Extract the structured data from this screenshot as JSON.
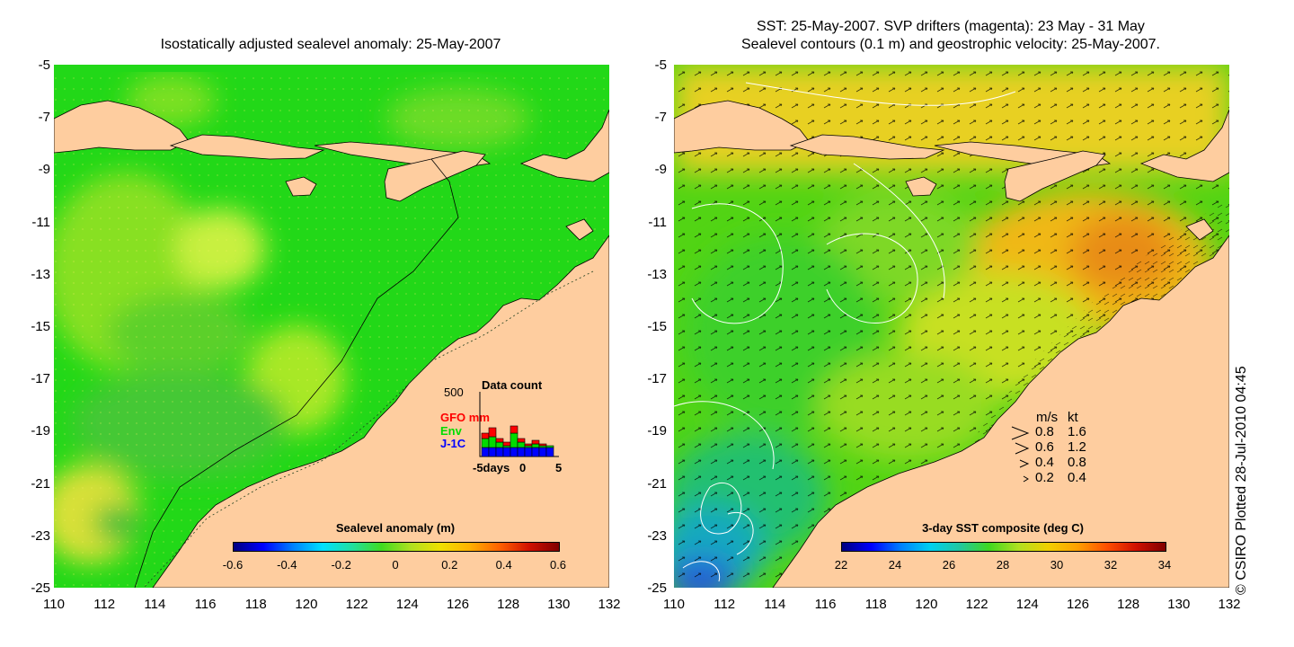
{
  "left_panel": {
    "title": "Isostatically adjusted sealevel anomaly: 25-May-2007",
    "colorbar": {
      "title": "Sealevel anomaly (m)",
      "ticks": [
        "-0.6",
        "-0.4",
        "-0.2",
        "0",
        "0.2",
        "0.4",
        "0.6"
      ]
    },
    "inset": {
      "title": "Data count",
      "ymax_label": "500",
      "series": [
        {
          "name": "GFO mm",
          "color": "#ff0000"
        },
        {
          "name": "Env",
          "color": "#00dd00"
        },
        {
          "name": "J-1C",
          "color": "#0000ff"
        }
      ],
      "x_labels": [
        "-5days",
        "0",
        "5"
      ]
    }
  },
  "right_panel": {
    "title_line1": "SST: 25-May-2007. SVP drifters (magenta): 23 May - 31 May",
    "title_line2": "Sealevel contours (0.1 m) and geostrophic velocity: 25-May-2007.",
    "colorbar": {
      "title": "3-day SST composite (deg C)",
      "ticks": [
        "22",
        "24",
        "26",
        "28",
        "30",
        "32",
        "34"
      ]
    },
    "legend": {
      "header_ms": "m/s",
      "header_kt": "kt",
      "rows": [
        {
          "ms": "0.8",
          "kt": "1.6"
        },
        {
          "ms": "0.6",
          "kt": "1.2"
        },
        {
          "ms": "0.4",
          "kt": "0.8"
        },
        {
          "ms": "0.2",
          "kt": "0.4"
        }
      ]
    }
  },
  "y_axis_labels": [
    "-5",
    "-7",
    "-9",
    "-11",
    "-13",
    "-15",
    "-17",
    "-19",
    "-21",
    "-23",
    "-25"
  ],
  "x_axis_labels": [
    "110",
    "112",
    "114",
    "116",
    "118",
    "120",
    "122",
    "124",
    "126",
    "128",
    "130",
    "132"
  ],
  "copyright": "© CSIRO Plotted 28-Jul-2010 04:45",
  "colors": {
    "land": "#fecd9f",
    "ocean_left": "#1edc14",
    "ocean_right": "#52dc10",
    "warm": "#f0a818"
  }
}
